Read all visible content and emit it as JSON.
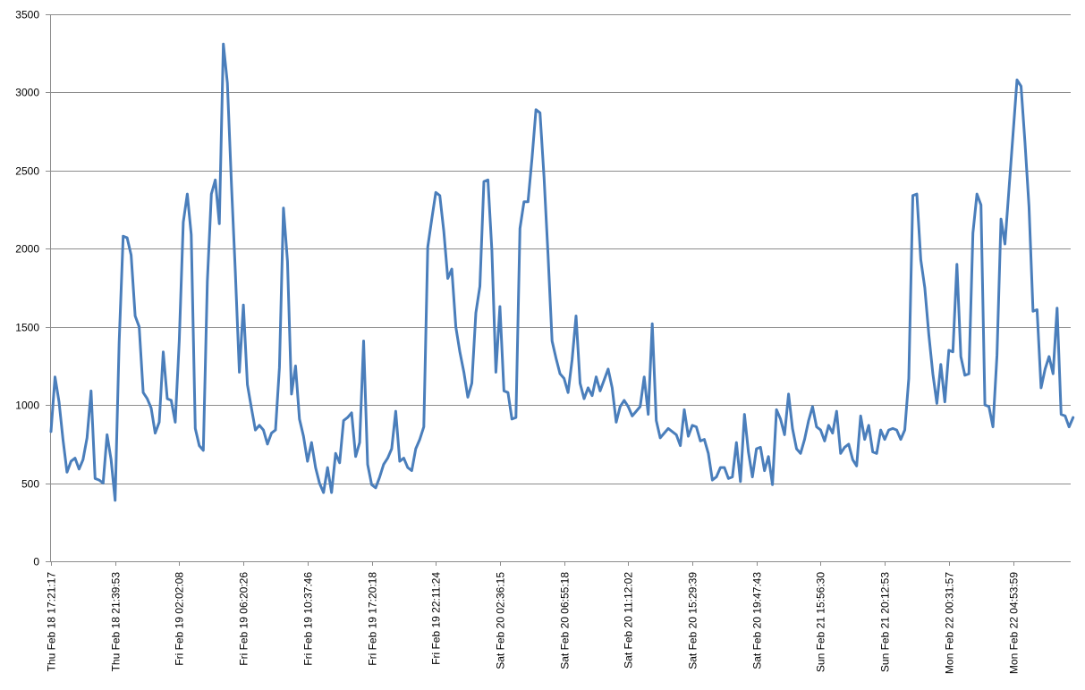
{
  "chart_data": {
    "type": "line",
    "title": "",
    "xlabel": "",
    "ylabel": "",
    "ylim": [
      0,
      3500
    ],
    "yticks": [
      0,
      500,
      1000,
      1500,
      2000,
      2500,
      3000,
      3500
    ],
    "grid": "horizontal",
    "legend": "none",
    "x_tick_labels": [
      "Thu Feb 18 17:21:17",
      "Thu Feb 18 21:39:53",
      "Fri Feb 19 02:02:08",
      "Fri Feb 19 06:20:26",
      "Fri Feb 19 10:37:46",
      "Fri Feb 19 17:20:18",
      "Fri Feb 19 22:11:24",
      "Sat Feb 20 02:36:15",
      "Sat Feb 20 06:55:18",
      "Sat Feb 20 11:12:02",
      "Sat Feb 20 15:29:39",
      "Sat Feb 20 19:47:43",
      "Sun Feb 21 15:56:30",
      "Sun Feb 21 20:12:53",
      "Mon Feb 22 00:31:57",
      "Mon Feb 22 04:53:59"
    ],
    "points_per_tick_interval": 16,
    "series": [
      {
        "color": "#4a7ebb",
        "values": [
          830,
          1180,
          1020,
          780,
          570,
          640,
          660,
          590,
          650,
          790,
          1090,
          530,
          520,
          500,
          810,
          650,
          390,
          1400,
          2080,
          2070,
          1960,
          1570,
          1500,
          1080,
          1040,
          980,
          820,
          890,
          1340,
          1040,
          1030,
          890,
          1410,
          2170,
          2350,
          2090,
          850,
          740,
          710,
          1790,
          2350,
          2440,
          2160,
          3310,
          3060,
          2420,
          1850,
          1210,
          1640,
          1130,
          980,
          840,
          870,
          840,
          750,
          820,
          840,
          1240,
          2260,
          1920,
          1070,
          1250,
          910,
          800,
          640,
          760,
          600,
          500,
          440,
          600,
          440,
          690,
          630,
          900,
          920,
          950,
          670,
          760,
          1410,
          620,
          490,
          470,
          540,
          620,
          660,
          720,
          960,
          640,
          660,
          600,
          580,
          720,
          780,
          860,
          2010,
          2190,
          2360,
          2340,
          2110,
          1810,
          1870,
          1500,
          1340,
          1210,
          1050,
          1140,
          1590,
          1760,
          2430,
          2440,
          1990,
          1210,
          1630,
          1090,
          1080,
          910,
          920,
          2130,
          2300,
          2300,
          2580,
          2890,
          2870,
          2460,
          1960,
          1410,
          1300,
          1200,
          1170,
          1080,
          1290,
          1570,
          1140,
          1040,
          1110,
          1060,
          1180,
          1090,
          1160,
          1230,
          1110,
          890,
          990,
          1030,
          990,
          930,
          960,
          990,
          1180,
          940,
          1520,
          900,
          790,
          820,
          850,
          830,
          810,
          740,
          970,
          800,
          870,
          860,
          770,
          780,
          690,
          520,
          540,
          600,
          600,
          530,
          540,
          760,
          510,
          940,
          700,
          540,
          720,
          730,
          580,
          670,
          490,
          970,
          910,
          810,
          1070,
          850,
          720,
          690,
          780,
          900,
          990,
          860,
          840,
          770,
          870,
          820,
          960,
          690,
          730,
          750,
          650,
          610,
          930,
          780,
          870,
          700,
          690,
          840,
          780,
          840,
          850,
          840,
          780,
          840,
          1170,
          2340,
          2350,
          1930,
          1750,
          1450,
          1200,
          1010,
          1260,
          1020,
          1350,
          1340,
          1900,
          1310,
          1190,
          1200,
          2100,
          2350,
          2280,
          1000,
          990,
          860,
          1320,
          2190,
          2030,
          2380,
          2730,
          3080,
          3040,
          2680,
          2270,
          1600,
          1610,
          1110,
          1230,
          1310,
          1200,
          1620,
          940,
          930,
          860,
          920
        ]
      }
    ]
  }
}
